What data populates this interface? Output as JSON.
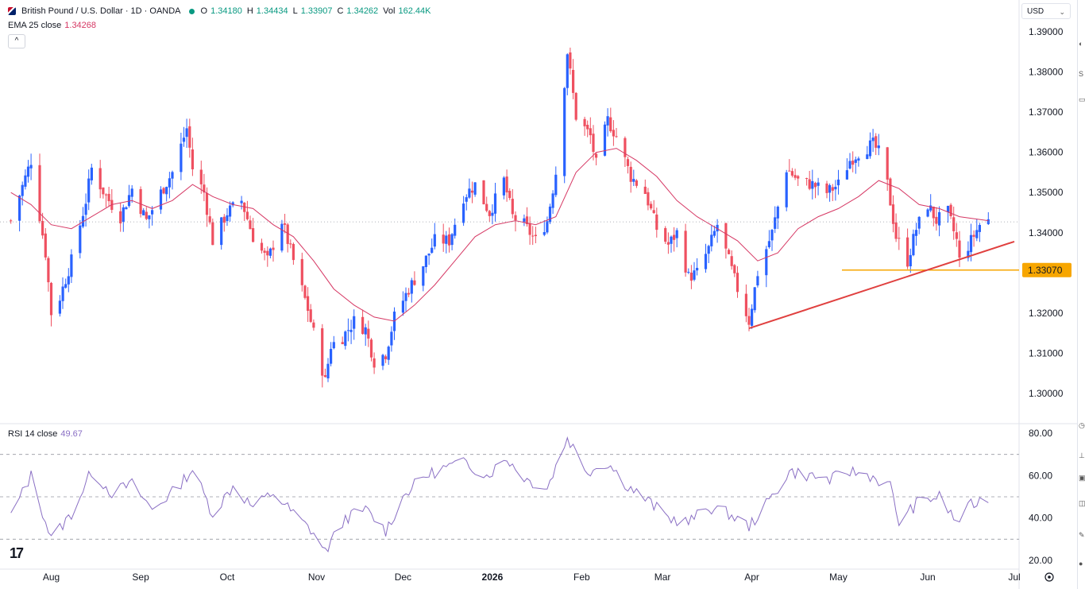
{
  "header": {
    "symbol": "British Pound / U.S. Dollar · 1D · OANDA",
    "o_label": "O",
    "o_value": "1.34180",
    "h_label": "H",
    "h_value": "1.34434",
    "l_label": "L",
    "l_value": "1.33907",
    "c_label": "C",
    "c_value": "1.34262",
    "vol_label": "Vol",
    "vol_value": "162.44K"
  },
  "ema": {
    "label": "EMA 25 close",
    "value": "1.34268"
  },
  "rsi": {
    "label": "RSI 14 close",
    "value": "49.67"
  },
  "currency": "USD",
  "colors": {
    "up": "#2962ff",
    "down": "#ef5060",
    "ema": "#d63864",
    "rsi": "#8a6fc4",
    "support": "#f7a600",
    "trend": "#e0403f",
    "label_bg": "#f7a600"
  },
  "chart_data": [
    {
      "type": "candlestick",
      "title": "British Pound / U.S. Dollar · 1D · OANDA",
      "y_axis_ticks": [
        "1.39000",
        "1.38000",
        "1.37000",
        "1.36000",
        "1.35000",
        "1.34000",
        "1.33000",
        "1.32000",
        "1.31000",
        "1.30000"
      ],
      "ylim": [
        1.2935,
        1.3968
      ],
      "x_axis_labels": [
        "Aug",
        "Sep",
        "Oct",
        "Nov",
        "Dec",
        "2026",
        "Feb",
        "Mar",
        "Apr",
        "May",
        "Jun",
        "Jul"
      ],
      "price_label": "1.33070",
      "grid": false,
      "close_path": [
        [
          "2025-07-18",
          1.343
        ],
        [
          "2025-07-25",
          1.358
        ],
        [
          "2025-07-30",
          1.335
        ],
        [
          "2025-08-01",
          1.32
        ],
        [
          "2025-08-04",
          1.324
        ],
        [
          "2025-08-08",
          1.333
        ],
        [
          "2025-08-13",
          1.348
        ],
        [
          "2025-08-15",
          1.356
        ],
        [
          "2025-08-20",
          1.349
        ],
        [
          "2025-08-25",
          1.344
        ],
        [
          "2025-08-29",
          1.351
        ],
        [
          "2025-09-03",
          1.343
        ],
        [
          "2025-09-08",
          1.35
        ],
        [
          "2025-09-12",
          1.355
        ],
        [
          "2025-09-17",
          1.366
        ],
        [
          "2025-09-19",
          1.356
        ],
        [
          "2025-09-23",
          1.35
        ],
        [
          "2025-09-26",
          1.338
        ],
        [
          "2025-10-01",
          1.345
        ],
        [
          "2025-10-06",
          1.348
        ],
        [
          "2025-10-10",
          1.339
        ],
        [
          "2025-10-15",
          1.333
        ],
        [
          "2025-10-20",
          1.343
        ],
        [
          "2025-10-24",
          1.333
        ],
        [
          "2025-10-29",
          1.321
        ],
        [
          "2025-11-04",
          1.303
        ],
        [
          "2025-11-06",
          1.312
        ],
        [
          "2025-11-10",
          1.314
        ],
        [
          "2025-11-14",
          1.318
        ],
        [
          "2025-11-18",
          1.316
        ],
        [
          "2025-11-21",
          1.308
        ],
        [
          "2025-11-25",
          1.31
        ],
        [
          "2025-11-28",
          1.319
        ],
        [
          "2025-12-03",
          1.326
        ],
        [
          "2025-12-08",
          1.332
        ],
        [
          "2025-12-12",
          1.338
        ],
        [
          "2025-12-17",
          1.338
        ],
        [
          "2025-12-22",
          1.349
        ],
        [
          "2025-12-26",
          1.352
        ],
        [
          "2025-12-31",
          1.345
        ],
        [
          "2026-01-05",
          1.353
        ],
        [
          "2026-01-08",
          1.344
        ],
        [
          "2026-01-12",
          1.342
        ],
        [
          "2026-01-16",
          1.338
        ],
        [
          "2026-01-20",
          1.343
        ],
        [
          "2026-01-23",
          1.355
        ],
        [
          "2026-01-27",
          1.385
        ],
        [
          "2026-01-30",
          1.369
        ],
        [
          "2026-02-04",
          1.364
        ],
        [
          "2026-02-06",
          1.357
        ],
        [
          "2026-02-10",
          1.368
        ],
        [
          "2026-02-13",
          1.364
        ],
        [
          "2026-02-18",
          1.354
        ],
        [
          "2026-02-23",
          1.35
        ],
        [
          "2026-02-27",
          1.341
        ],
        [
          "2026-03-03",
          1.337
        ],
        [
          "2026-03-06",
          1.34
        ],
        [
          "2026-03-10",
          1.329
        ],
        [
          "2026-03-13",
          1.33
        ],
        [
          "2026-03-17",
          1.336
        ],
        [
          "2026-03-20",
          1.342
        ],
        [
          "2026-03-24",
          1.333
        ],
        [
          "2026-03-27",
          1.326
        ],
        [
          "2026-03-31",
          1.318
        ],
        [
          "2026-04-03",
          1.33
        ],
        [
          "2026-04-08",
          1.34
        ],
        [
          "2026-04-13",
          1.356
        ],
        [
          "2026-04-17",
          1.353
        ],
        [
          "2026-04-22",
          1.352
        ],
        [
          "2026-04-27",
          1.35
        ],
        [
          "2026-05-01",
          1.352
        ],
        [
          "2026-05-05",
          1.358
        ],
        [
          "2026-05-08",
          1.36
        ],
        [
          "2026-05-13",
          1.362
        ],
        [
          "2026-05-15",
          1.36
        ],
        [
          "2026-05-18",
          1.352
        ],
        [
          "2026-05-21",
          1.339
        ],
        [
          "2026-05-25",
          1.333
        ],
        [
          "2026-05-28",
          1.341
        ],
        [
          "2026-06-01",
          1.347
        ],
        [
          "2026-06-04",
          1.343
        ],
        [
          "2026-06-08",
          1.345
        ],
        [
          "2026-06-11",
          1.338
        ],
        [
          "2026-06-12",
          1.333
        ],
        [
          "2026-06-16",
          1.338
        ],
        [
          "2026-06-19",
          1.342
        ],
        [
          "2026-06-22",
          1.343
        ]
      ],
      "ema_path": [
        [
          "2025-07-18",
          1.35
        ],
        [
          "2025-07-25",
          1.347
        ],
        [
          "2025-08-01",
          1.342
        ],
        [
          "2025-08-08",
          1.341
        ],
        [
          "2025-08-15",
          1.344
        ],
        [
          "2025-08-22",
          1.347
        ],
        [
          "2025-08-29",
          1.348
        ],
        [
          "2025-09-05",
          1.346
        ],
        [
          "2025-09-12",
          1.348
        ],
        [
          "2025-09-19",
          1.352
        ],
        [
          "2025-09-26",
          1.349
        ],
        [
          "2025-10-03",
          1.347
        ],
        [
          "2025-10-10",
          1.346
        ],
        [
          "2025-10-17",
          1.342
        ],
        [
          "2025-10-24",
          1.339
        ],
        [
          "2025-10-31",
          1.333
        ],
        [
          "2025-11-07",
          1.326
        ],
        [
          "2025-11-14",
          1.322
        ],
        [
          "2025-11-21",
          1.319
        ],
        [
          "2025-11-28",
          1.318
        ],
        [
          "2025-12-05",
          1.322
        ],
        [
          "2025-12-12",
          1.327
        ],
        [
          "2025-12-19",
          1.333
        ],
        [
          "2025-12-26",
          1.339
        ],
        [
          "2026-01-02",
          1.342
        ],
        [
          "2026-01-09",
          1.343
        ],
        [
          "2026-01-16",
          1.342
        ],
        [
          "2026-01-23",
          1.344
        ],
        [
          "2026-01-30",
          1.355
        ],
        [
          "2026-02-06",
          1.36
        ],
        [
          "2026-02-13",
          1.361
        ],
        [
          "2026-02-20",
          1.358
        ],
        [
          "2026-02-27",
          1.354
        ],
        [
          "2026-03-06",
          1.348
        ],
        [
          "2026-03-13",
          1.344
        ],
        [
          "2026-03-20",
          1.341
        ],
        [
          "2026-03-27",
          1.338
        ],
        [
          "2026-04-03",
          1.333
        ],
        [
          "2026-04-10",
          1.335
        ],
        [
          "2026-04-17",
          1.341
        ],
        [
          "2026-04-24",
          1.344
        ],
        [
          "2026-05-01",
          1.346
        ],
        [
          "2026-05-08",
          1.349
        ],
        [
          "2026-05-15",
          1.353
        ],
        [
          "2026-05-22",
          1.351
        ],
        [
          "2026-05-29",
          1.347
        ],
        [
          "2026-06-05",
          1.346
        ],
        [
          "2026-06-12",
          1.344
        ],
        [
          "2026-06-22",
          1.343
        ]
      ],
      "support_level": 1.3307,
      "trendline": {
        "from": [
          "2026-03-31",
          1.3162
        ],
        "to": [
          "2026-07-01",
          1.3378
        ]
      }
    },
    {
      "type": "line",
      "title": "RSI 14 close",
      "y_axis_ticks": [
        "80.00",
        "60.00",
        "40.00",
        "20.00"
      ],
      "ylim": [
        16.5,
        84
      ],
      "reference_lines": [
        70,
        50,
        30
      ],
      "values_path": [
        [
          "2025-07-18",
          41
        ],
        [
          "2025-07-25",
          60
        ],
        [
          "2025-08-01",
          30
        ],
        [
          "2025-08-08",
          42
        ],
        [
          "2025-08-15",
          62
        ],
        [
          "2025-08-22",
          52
        ],
        [
          "2025-08-29",
          56
        ],
        [
          "2025-09-05",
          44
        ],
        [
          "2025-09-12",
          52
        ],
        [
          "2025-09-19",
          63
        ],
        [
          "2025-09-26",
          42
        ],
        [
          "2025-10-03",
          55
        ],
        [
          "2025-10-10",
          45
        ],
        [
          "2025-10-17",
          52
        ],
        [
          "2025-10-24",
          42
        ],
        [
          "2025-10-31",
          33
        ],
        [
          "2025-11-04",
          24
        ],
        [
          "2025-11-11",
          40
        ],
        [
          "2025-11-18",
          44
        ],
        [
          "2025-11-25",
          34
        ],
        [
          "2025-12-02",
          52
        ],
        [
          "2025-12-09",
          60
        ],
        [
          "2025-12-16",
          64
        ],
        [
          "2025-12-23",
          66
        ],
        [
          "2025-12-30",
          60
        ],
        [
          "2026-01-06",
          68
        ],
        [
          "2026-01-13",
          58
        ],
        [
          "2026-01-20",
          54
        ],
        [
          "2026-01-27",
          78
        ],
        [
          "2026-02-03",
          62
        ],
        [
          "2026-02-10",
          66
        ],
        [
          "2026-02-17",
          55
        ],
        [
          "2026-02-24",
          48
        ],
        [
          "2026-03-03",
          40
        ],
        [
          "2026-03-10",
          38
        ],
        [
          "2026-03-17",
          45
        ],
        [
          "2026-03-24",
          42
        ],
        [
          "2026-03-31",
          36
        ],
        [
          "2026-04-07",
          48
        ],
        [
          "2026-04-14",
          62
        ],
        [
          "2026-04-21",
          60
        ],
        [
          "2026-04-28",
          58
        ],
        [
          "2026-05-05",
          62
        ],
        [
          "2026-05-12",
          60
        ],
        [
          "2026-05-19",
          55
        ],
        [
          "2026-05-22",
          38
        ],
        [
          "2026-05-29",
          48
        ],
        [
          "2026-06-05",
          50
        ],
        [
          "2026-06-11",
          38
        ],
        [
          "2026-06-16",
          46
        ],
        [
          "2026-06-22",
          50
        ]
      ]
    }
  ]
}
